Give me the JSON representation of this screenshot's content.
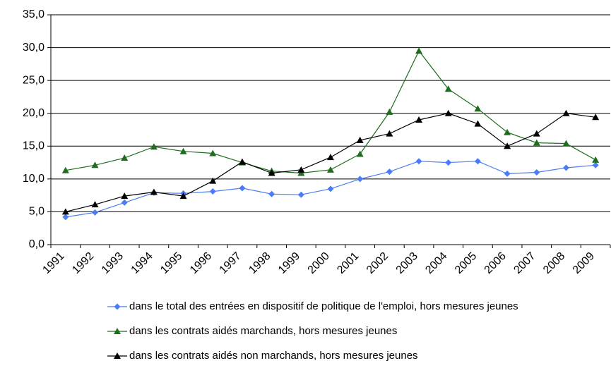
{
  "chart_data": {
    "type": "line",
    "categories": [
      "1991",
      "1992",
      "1993",
      "1994",
      "1995",
      "1996",
      "1997",
      "1998",
      "1999",
      "2000",
      "2001",
      "2002",
      "2003",
      "2004",
      "2005",
      "2006",
      "2007",
      "2008",
      "2009"
    ],
    "series": [
      {
        "name": "dans le total des entrées en dispositif de politique de l'emploi, hors mesures jeunes",
        "color": "#4a7cf5",
        "marker": "diamond",
        "values": [
          4.2,
          4.9,
          6.4,
          7.9,
          7.8,
          8.1,
          8.6,
          7.7,
          7.6,
          8.5,
          10.0,
          11.1,
          12.7,
          12.5,
          12.7,
          10.8,
          11.0,
          11.7,
          12.1
        ]
      },
      {
        "name": "dans les contrats aidés marchands, hors mesures jeunes",
        "color": "#1e6e1e",
        "marker": "triangle",
        "values": [
          11.3,
          12.1,
          13.2,
          14.9,
          14.2,
          13.9,
          12.5,
          11.2,
          10.9,
          11.4,
          13.8,
          20.2,
          29.5,
          23.7,
          20.7,
          17.1,
          15.5,
          15.4,
          12.9
        ]
      },
      {
        "name": "dans les contrats aidés non marchands, hors mesures jeunes",
        "color": "#000000",
        "marker": "triangle",
        "values": [
          5.0,
          6.1,
          7.4,
          8.0,
          7.4,
          9.7,
          12.6,
          10.9,
          11.4,
          13.3,
          15.9,
          16.9,
          19.0,
          20.0,
          18.4,
          15.0,
          16.9,
          20.0,
          19.4
        ]
      }
    ],
    "ylim": [
      0,
      35
    ],
    "yticks": [
      {
        "value": 0,
        "label": "0,0"
      },
      {
        "value": 5,
        "label": "5,0"
      },
      {
        "value": 10,
        "label": "10,0"
      },
      {
        "value": 15,
        "label": "15,0"
      },
      {
        "value": 20,
        "label": "20,0"
      },
      {
        "value": 25,
        "label": "25,0"
      },
      {
        "value": 30,
        "label": "30,0"
      },
      {
        "value": 35,
        "label": "35,0"
      }
    ],
    "grid": true
  }
}
